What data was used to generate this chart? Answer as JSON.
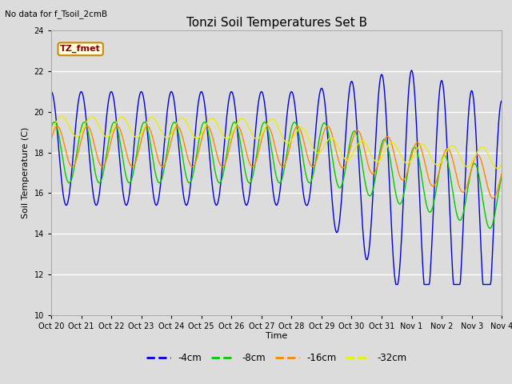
{
  "title": "Tonzi Soil Temperatures Set B",
  "xlabel": "Time",
  "ylabel": "Soil Temperature (C)",
  "top_left_text": "No data for f_Tsoil_2cmB",
  "annotation_text": "TZ_fmet",
  "ylim": [
    10,
    24
  ],
  "yticks": [
    10,
    12,
    14,
    16,
    18,
    20,
    22,
    24
  ],
  "bg_color": "#dcdcdc",
  "line_colors": {
    "-4cm": "#0000dd",
    "-8cm": "#00cc00",
    "-16cm": "#ff8800",
    "-32cm": "#eeee00"
  },
  "xtick_labels": [
    "Oct 20",
    "Oct 21",
    "Oct 22",
    "Oct 23",
    "Oct 24",
    "Oct 25",
    "Oct 26",
    "Oct 27",
    "Oct 28",
    "Oct 29",
    "Oct 30",
    "Oct 31",
    "Nov 1",
    "Nov 2",
    "Nov 3",
    "Nov 4"
  ],
  "figsize": [
    6.4,
    4.8
  ],
  "dpi": 100
}
